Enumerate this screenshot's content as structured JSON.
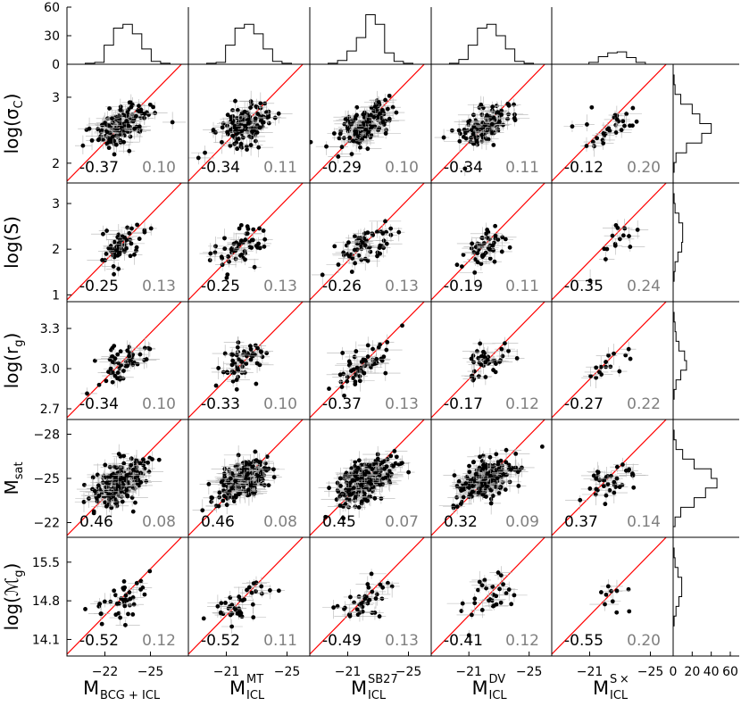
{
  "chart_data": {
    "type": "scatter",
    "columns": [
      {
        "main": "M",
        "sub": "BCG + ICL",
        "sup": "",
        "xticks": [
          "−22",
          "−25"
        ],
        "xlim": [
          -19.5,
          -27.5
        ]
      },
      {
        "main": "M",
        "sub": "ICL",
        "sup": "MT",
        "xticks": [
          "−21",
          "−25"
        ],
        "xlim": [
          -18.5,
          -26.5
        ]
      },
      {
        "main": "M",
        "sub": "ICL",
        "sup": "SB27",
        "xticks": [
          "−21",
          "−25"
        ],
        "xlim": [
          -18.5,
          -26.5
        ]
      },
      {
        "main": "M",
        "sub": "ICL",
        "sup": "DV",
        "xticks": [
          "−21",
          "−25"
        ],
        "xlim": [
          -18.5,
          -26.5
        ]
      },
      {
        "main": "M",
        "sub": "ICL",
        "sup": "S ×",
        "xticks": [
          "−21",
          "−25"
        ],
        "xlim": [
          -18.5,
          -26.5
        ]
      }
    ],
    "rows": [
      {
        "label": "log(σ",
        "sub": "C",
        "tail": ")",
        "yticks": [
          "2",
          "3"
        ],
        "ylim": [
          1.7,
          3.5
        ]
      },
      {
        "label": "log(S)",
        "sub": "",
        "tail": "",
        "yticks": [
          "1",
          "2",
          "3"
        ],
        "ylim": [
          0.85,
          3.45
        ]
      },
      {
        "label": "log(r",
        "sub": "g",
        "tail": ")",
        "yticks": [
          "2.7",
          "3.0",
          "3.3"
        ],
        "ylim": [
          2.62,
          3.5
        ]
      },
      {
        "label": "M",
        "sub": "sat",
        "tail": "",
        "yticks": [
          "−22",
          "−25",
          "−28"
        ],
        "ylim": [
          -21.0,
          -29.0
        ]
      },
      {
        "label": "log(ℳ",
        "sub": "g",
        "tail": ")",
        "yticks": [
          "14.1",
          "14.8",
          "15.5"
        ],
        "ylim": [
          13.8,
          15.95
        ]
      }
    ],
    "stats": [
      [
        [
          "-0.37",
          "0.10"
        ],
        [
          "-0.34",
          "0.11"
        ],
        [
          "-0.29",
          "0.10"
        ],
        [
          "-0.34",
          "0.11"
        ],
        [
          "-0.12",
          "0.20"
        ]
      ],
      [
        [
          "-0.25",
          "0.13"
        ],
        [
          "-0.25",
          "0.13"
        ],
        [
          "-0.26",
          "0.13"
        ],
        [
          "-0.19",
          "0.11"
        ],
        [
          "-0.35",
          "0.24"
        ]
      ],
      [
        [
          "-0.34",
          "0.10"
        ],
        [
          "-0.33",
          "0.10"
        ],
        [
          "-0.37",
          "0.13"
        ],
        [
          "-0.17",
          "0.12"
        ],
        [
          "-0.27",
          "0.22"
        ]
      ],
      [
        [
          "0.46",
          "0.08"
        ],
        [
          "0.46",
          "0.08"
        ],
        [
          "0.45",
          "0.07"
        ],
        [
          "0.32",
          "0.09"
        ],
        [
          "0.37",
          "0.14"
        ]
      ],
      [
        [
          "-0.52",
          "0.12"
        ],
        [
          "-0.52",
          "0.11"
        ],
        [
          "-0.49",
          "0.13"
        ],
        [
          "-0.41",
          "0.12"
        ],
        [
          "-0.55",
          "0.20"
        ]
      ]
    ],
    "point_counts": [
      [
        140,
        140,
        150,
        130,
        30
      ],
      [
        55,
        55,
        60,
        45,
        15
      ],
      [
        55,
        55,
        55,
        40,
        15
      ],
      [
        230,
        230,
        250,
        230,
        40
      ],
      [
        40,
        38,
        38,
        30,
        10
      ]
    ],
    "top_histograms": [
      {
        "counts": [
          0,
          1,
          2,
          20,
          38,
          42,
          32,
          16,
          3,
          1,
          0
        ]
      },
      {
        "counts": [
          0,
          1,
          2,
          20,
          38,
          42,
          32,
          16,
          3,
          1,
          0
        ]
      },
      {
        "counts": [
          0,
          1,
          4,
          14,
          28,
          52,
          42,
          12,
          3,
          1,
          0
        ]
      },
      {
        "counts": [
          0,
          1,
          5,
          20,
          38,
          42,
          30,
          16,
          3,
          1,
          0
        ]
      },
      {
        "counts": [
          0,
          0,
          0,
          2,
          8,
          12,
          13,
          7,
          2,
          0,
          0
        ]
      }
    ],
    "top_ylim": [
      0,
      60
    ],
    "top_yticks": [
      "0",
      "30",
      "60"
    ],
    "right_histograms": [
      {
        "counts": [
          1,
          2,
          8,
          20,
          28,
          40,
          30,
          14,
          3,
          1
        ]
      },
      {
        "counts": [
          1,
          2,
          6,
          10,
          10,
          9,
          5,
          2,
          1,
          0
        ]
      },
      {
        "counts": [
          1,
          2,
          3,
          6,
          12,
          14,
          8,
          3,
          1,
          0
        ]
      },
      {
        "counts": [
          1,
          3,
          10,
          22,
          40,
          46,
          34,
          22,
          8,
          2
        ]
      },
      {
        "counts": [
          1,
          2,
          5,
          9,
          9,
          6,
          3,
          1,
          0,
          0
        ]
      }
    ],
    "right_xlim": [
      0,
      60
    ],
    "right_xticks": [
      "0",
      "20",
      "40",
      "60"
    ],
    "colors": {
      "points": "#000000",
      "errorbars": "#b4b4b4",
      "fit_line": "#ff0000",
      "rms_text": "#808080",
      "axes": "#000000"
    }
  }
}
